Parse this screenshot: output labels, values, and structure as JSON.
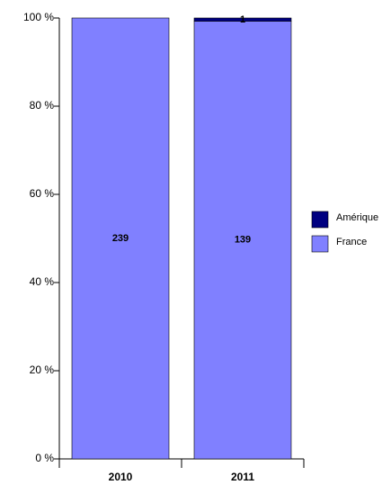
{
  "chart_data": {
    "type": "stacked_percent_bar",
    "categories": [
      "2010",
      "2011"
    ],
    "series": [
      {
        "name": "France",
        "color": "#8080ff",
        "values": [
          239,
          139
        ]
      },
      {
        "name": "Amérique",
        "color": "#000080",
        "values": [
          null,
          1
        ]
      }
    ],
    "ylim": [
      0,
      100
    ],
    "yticks": [
      {
        "value": 0,
        "label": "0 %"
      },
      {
        "value": 20,
        "label": "20 %"
      },
      {
        "value": 40,
        "label": "40 %"
      },
      {
        "value": 60,
        "label": "60 %"
      },
      {
        "value": 80,
        "label": "80 %"
      },
      {
        "value": 100,
        "label": "100 %"
      }
    ],
    "legend": "right"
  }
}
